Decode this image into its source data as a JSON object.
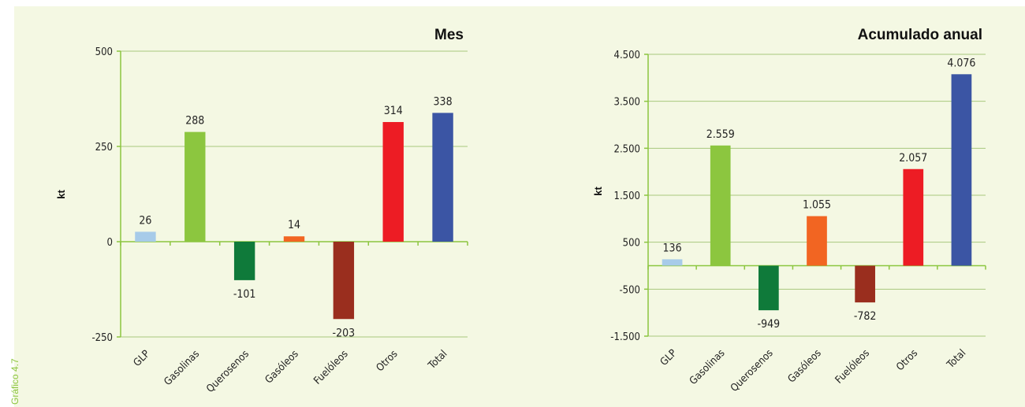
{
  "side_label": "Gráfico 4.7",
  "chart_data": [
    {
      "type": "bar",
      "title": "Mes",
      "ylabel": "kt",
      "xlabel": "",
      "categories": [
        "GLP",
        "Gasolinas",
        "Querosenos",
        "Gasóleos",
        "Fuelóleos",
        "Otros",
        "Total"
      ],
      "values": [
        26,
        288,
        -101,
        14,
        -203,
        314,
        338
      ],
      "value_labels": [
        "26",
        "288",
        "-101",
        "14",
        "-203",
        "314",
        "338"
      ],
      "colors": [
        "#a7cbe9",
        "#8cc63f",
        "#0f7a3a",
        "#f26522",
        "#9a2e1e",
        "#ed1c24",
        "#3b55a4"
      ],
      "yticks": [
        500,
        250,
        0,
        -250
      ],
      "ytick_labels": [
        "500",
        "250",
        "0",
        "-250"
      ],
      "ylim": [
        -250,
        500
      ],
      "grid": true,
      "legend": "none"
    },
    {
      "type": "bar",
      "title": "Acumulado anual",
      "ylabel": "kt",
      "xlabel": "",
      "categories": [
        "GLP",
        "Gasolinas",
        "Querosenos",
        "Gasóleos",
        "Fuelóleos",
        "Otros",
        "Total"
      ],
      "values": [
        136,
        2559,
        -949,
        1055,
        -782,
        2057,
        4076
      ],
      "value_labels": [
        "136",
        "2.559",
        "-949",
        "1.055",
        "-782",
        "2.057",
        "4.076"
      ],
      "colors": [
        "#a7cbe9",
        "#8cc63f",
        "#0f7a3a",
        "#f26522",
        "#9a2e1e",
        "#ed1c24",
        "#3b55a4"
      ],
      "yticks": [
        4500,
        3500,
        2500,
        1500,
        500,
        -500,
        -1500
      ],
      "ytick_labels": [
        "4.500",
        "3.500",
        "2.500",
        "1.500",
        "500",
        "-500",
        "-1.500"
      ],
      "ylim": [
        -1500,
        4500
      ],
      "grid": true,
      "legend": "none"
    }
  ]
}
